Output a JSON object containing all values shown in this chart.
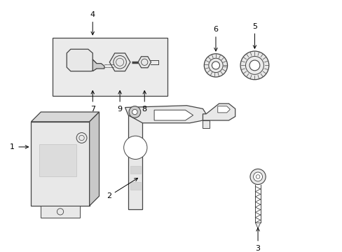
{
  "background_color": "#ffffff",
  "line_color": "#444444",
  "light_gray": "#e8e8e8",
  "medium_gray": "#cccccc",
  "inset_bg": "#ebebeb",
  "figsize": [
    4.89,
    3.6
  ],
  "dpi": 100
}
